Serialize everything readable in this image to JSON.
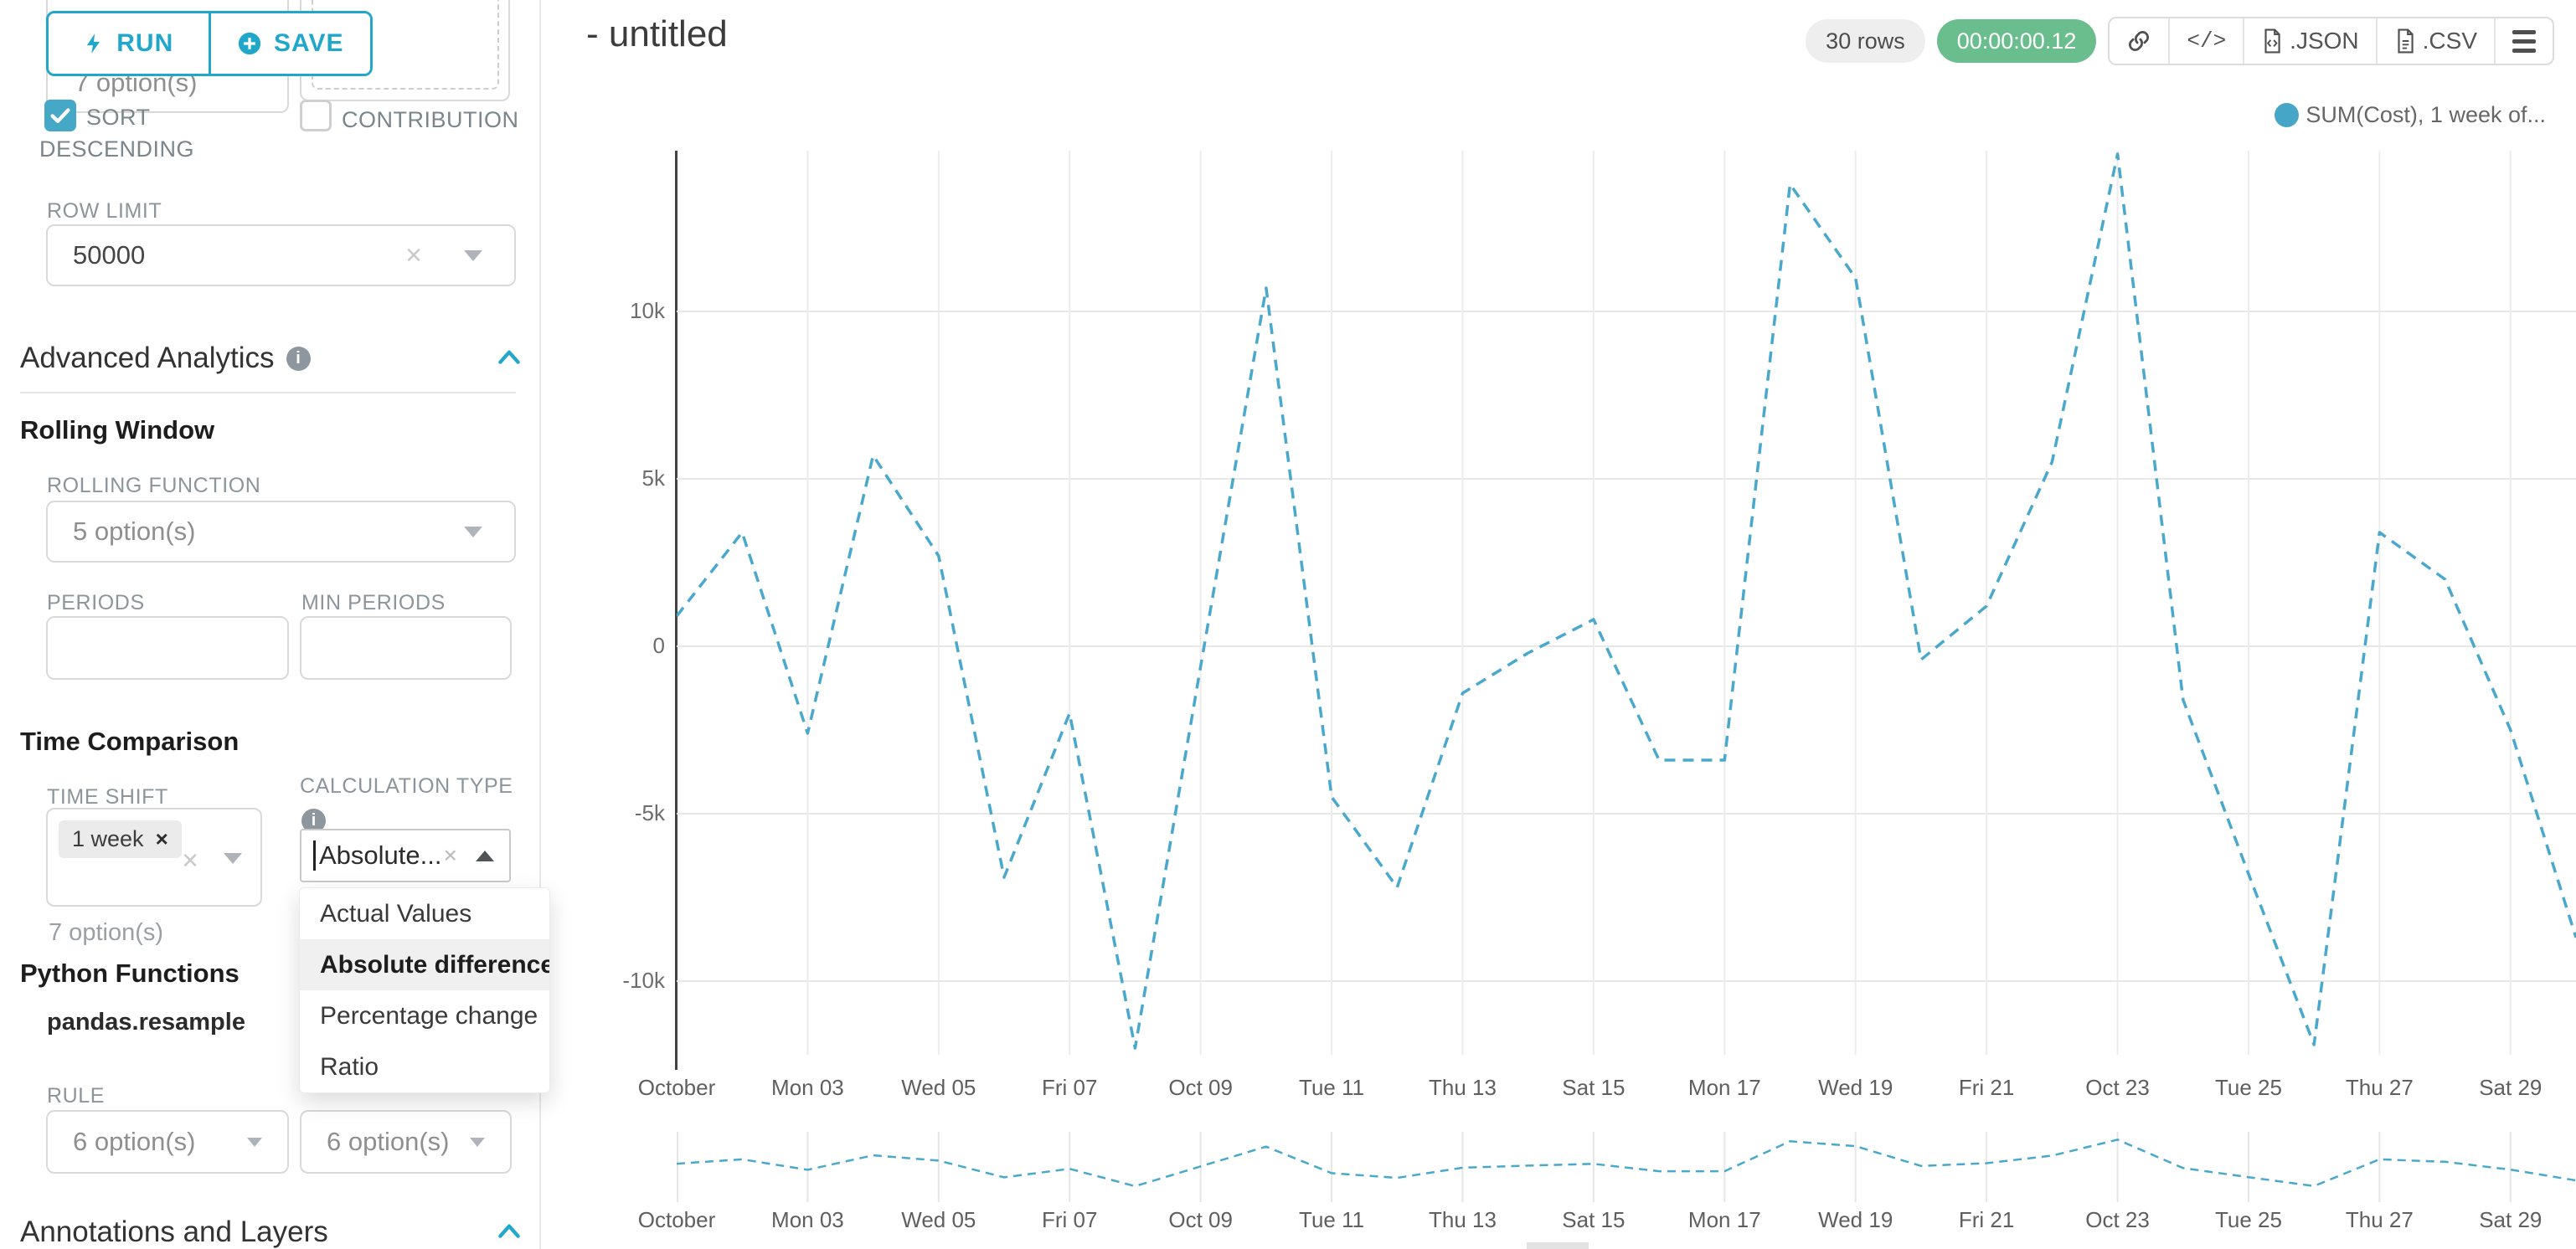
{
  "colors": {
    "accent": "#20A7C9",
    "checkbox": "#45A8C7",
    "line": "#49A8CB",
    "legend_dot": "#47A6C7",
    "badge_green": "#6ABE8E"
  },
  "panel": {
    "run_label": "RUN",
    "save_label": "SAVE",
    "top_left_select_value": "7 option(s)",
    "sort_descending": {
      "line1": "SORT",
      "line2": "DESCENDING"
    },
    "contribution_label": "CONTRIBUTION",
    "row_limit": {
      "label": "ROW LIMIT",
      "value": "50000"
    },
    "advanced_analytics_title": "Advanced Analytics",
    "rolling_window": {
      "title": "Rolling Window",
      "rolling_function_label": "ROLLING FUNCTION",
      "rolling_function_value": "5 option(s)",
      "periods_label": "PERIODS",
      "min_periods_label": "MIN PERIODS"
    },
    "time_comparison": {
      "title": "Time Comparison",
      "time_shift_label": "TIME SHIFT",
      "time_shift_tag": "1 week",
      "time_shift_helper": "7 option(s)",
      "calculation_type_label": "CALCULATION TYPE",
      "calculation_type_value": "Absolute...",
      "dropdown_options": [
        "Actual Values",
        "Absolute difference",
        "Percentage change",
        "Ratio"
      ],
      "dropdown_selected": "Absolute difference"
    },
    "python_functions": {
      "title": "Python Functions",
      "function_name": "pandas.resample",
      "rule_label": "RULE",
      "rule_value_left": "6 option(s)",
      "rule_value_right": "6 option(s)"
    },
    "annotations_title": "Annotations and Layers"
  },
  "header": {
    "title": "- untitled",
    "rows_badge": "30 rows",
    "timer_badge": "00:00:00.12",
    "export_json": ".JSON",
    "export_csv": ".CSV"
  },
  "legend": {
    "label": "SUM(Cost), 1 week of..."
  },
  "chart_data": {
    "type": "line",
    "title": "- untitled",
    "legend": "SUM(Cost), 1 week of...",
    "legend_position": "top-right",
    "line_style": "dashed",
    "grid": true,
    "x": [
      "Oct 01",
      "Oct 02",
      "Oct 03",
      "Oct 04",
      "Oct 05",
      "Oct 06",
      "Oct 07",
      "Oct 08",
      "Oct 09",
      "Oct 10",
      "Oct 11",
      "Oct 12",
      "Oct 13",
      "Oct 14",
      "Oct 15",
      "Oct 16",
      "Oct 17",
      "Oct 18",
      "Oct 19",
      "Oct 20",
      "Oct 21",
      "Oct 22",
      "Oct 23",
      "Oct 24",
      "Oct 25",
      "Oct 26",
      "Oct 27",
      "Oct 28",
      "Oct 29",
      "Oct 30"
    ],
    "series": [
      {
        "name": "SUM(Cost), 1 week offset, absolute difference",
        "values": [
          900,
          3400,
          -2600,
          5700,
          2700,
          -6900,
          -2000,
          -12000,
          -600,
          10700,
          -4500,
          -7200,
          -1400,
          -200,
          800,
          -3400,
          -3400,
          13800,
          11000,
          -400,
          1200,
          5500,
          14700,
          -1600,
          -6800,
          -11900,
          3400,
          2000,
          -2500,
          -8700
        ]
      }
    ],
    "x_tick_labels": [
      "October",
      "Mon 03",
      "Wed 05",
      "Fri 07",
      "Oct 09",
      "Tue 11",
      "Thu 13",
      "Sat 15",
      "Mon 17",
      "Wed 19",
      "Fri 21",
      "Oct 23",
      "Tue 25",
      "Thu 27",
      "Sat 29"
    ],
    "y_ticks": [
      "10k",
      "5k",
      "0",
      "-5k",
      "-10k"
    ],
    "y_tick_values": [
      10000,
      5000,
      0,
      -5000,
      -10000
    ],
    "ylim": [
      -13000,
      15000
    ],
    "has_mini_preview": true
  }
}
